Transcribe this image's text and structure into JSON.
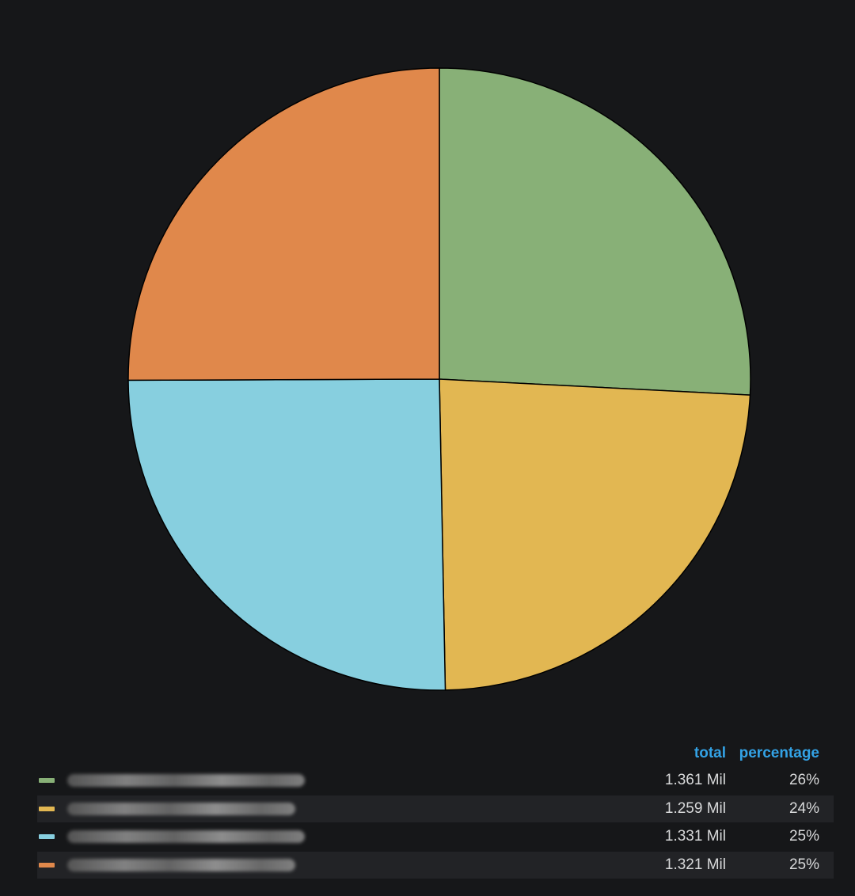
{
  "chart_data": {
    "type": "pie",
    "start_angle_deg": 0,
    "direction": "clockwise",
    "slices": [
      {
        "value": 1.361,
        "color": "#88b077"
      },
      {
        "value": 1.259,
        "color": "#e2b752"
      },
      {
        "value": 1.331,
        "color": "#87cfdf"
      },
      {
        "value": 1.321,
        "color": "#e0884b"
      }
    ],
    "legend": {
      "placement": "bottom",
      "columns": [
        "total",
        "percentage"
      ],
      "rows": [
        {
          "color": "#88b077",
          "total": "1.361 Mil",
          "percentage": "26%"
        },
        {
          "color": "#e2b752",
          "total": "1.259 Mil",
          "percentage": "24%"
        },
        {
          "color": "#87cfdf",
          "total": "1.331 Mil",
          "percentage": "25%"
        },
        {
          "color": "#e0884b",
          "total": "1.321 Mil",
          "percentage": "25%"
        }
      ]
    }
  },
  "colors": {
    "background": "#161719",
    "row_stripe": "#222326",
    "header_text": "#33a2e5",
    "value_text": "#d8d9da",
    "slice_border": "#000000"
  }
}
